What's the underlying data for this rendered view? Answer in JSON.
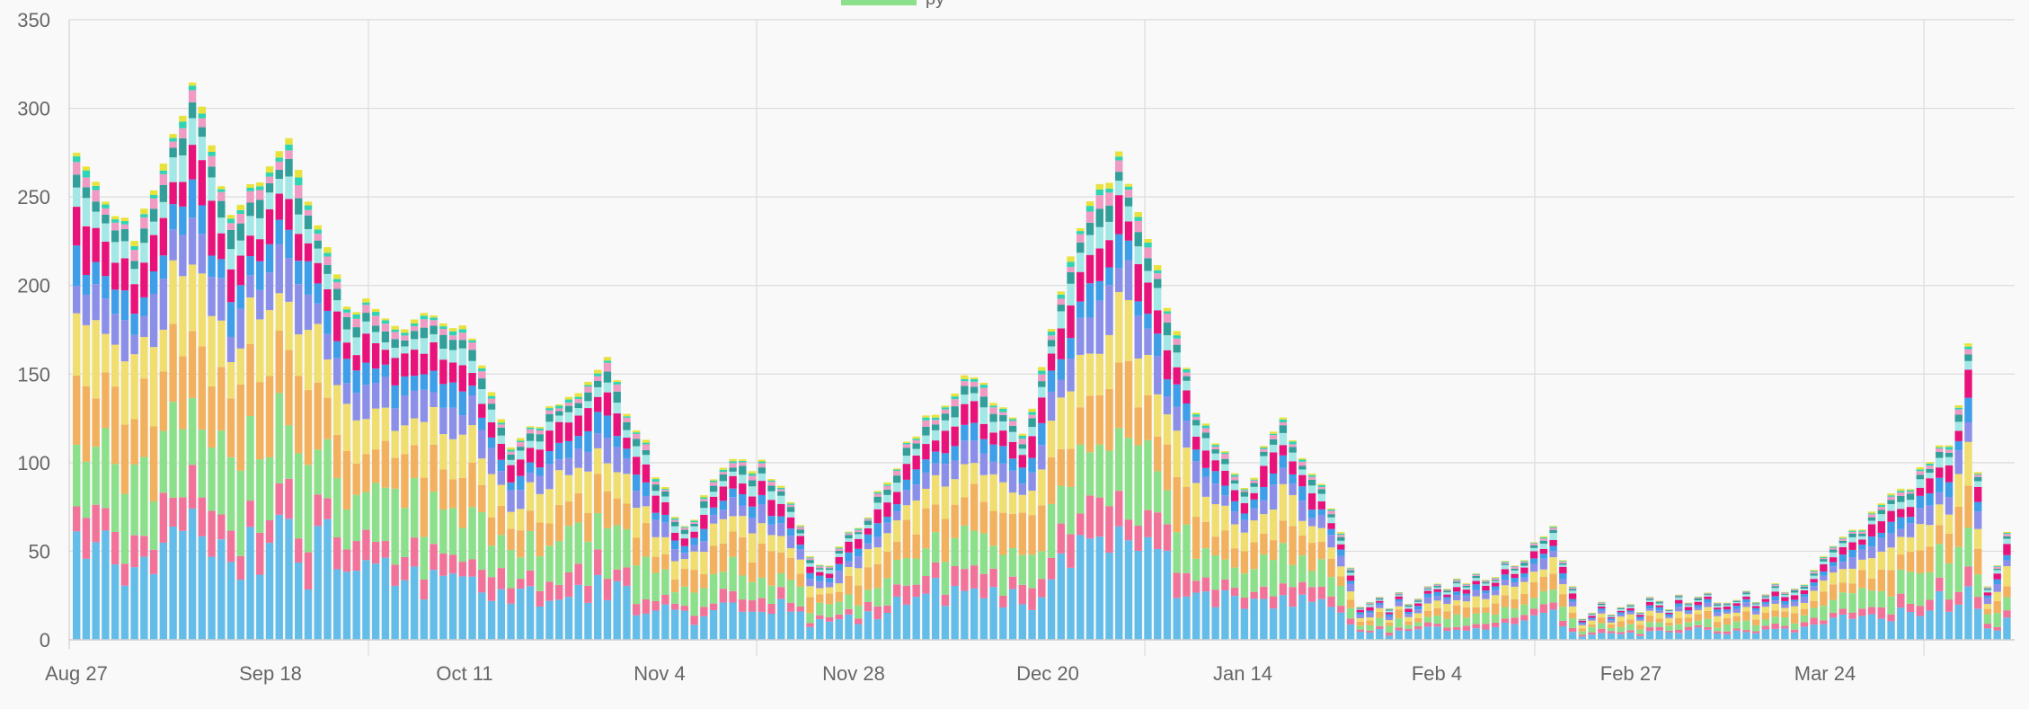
{
  "chart_data": {
    "type": "bar",
    "stacked": true,
    "title": "",
    "xlabel": "",
    "ylabel": "",
    "ylim": [
      0,
      350
    ],
    "y_ticks": [
      0,
      50,
      100,
      150,
      200,
      250,
      300,
      350
    ],
    "grid": true,
    "legend_placement": "top",
    "legend_visible_fragment": {
      "swatch_color": "#8de08b",
      "label_fragment": "py"
    },
    "x_tick_labels": [
      "Aug 27",
      "Sep 18",
      "Oct 11",
      "Nov 4",
      "Nov 28",
      "Dec 20",
      "Jan 14",
      "Feb 4",
      "Feb 27",
      "Mar 24"
    ],
    "bar_count": 201,
    "approx_totals_sampled": [
      {
        "bar": 0,
        "total": 275
      },
      {
        "bar": 6,
        "total": 228
      },
      {
        "bar": 12,
        "total": 315
      },
      {
        "bar": 16,
        "total": 240
      },
      {
        "bar": 22,
        "total": 280
      },
      {
        "bar": 28,
        "total": 192
      },
      {
        "bar": 34,
        "total": 180
      },
      {
        "bar": 40,
        "total": 180
      },
      {
        "bar": 45,
        "total": 110
      },
      {
        "bar": 50,
        "total": 133
      },
      {
        "bar": 55,
        "total": 155
      },
      {
        "bar": 59,
        "total": 108
      },
      {
        "bar": 63,
        "total": 60
      },
      {
        "bar": 68,
        "total": 103
      },
      {
        "bar": 72,
        "total": 95
      },
      {
        "bar": 77,
        "total": 40
      },
      {
        "bar": 83,
        "total": 80
      },
      {
        "bar": 88,
        "total": 125
      },
      {
        "bar": 93,
        "total": 152
      },
      {
        "bar": 98,
        "total": 115
      },
      {
        "bar": 104,
        "total": 235
      },
      {
        "bar": 108,
        "total": 272
      },
      {
        "bar": 111,
        "total": 230
      },
      {
        "bar": 116,
        "total": 130
      },
      {
        "bar": 121,
        "total": 85
      },
      {
        "bar": 125,
        "total": 125
      },
      {
        "bar": 130,
        "total": 75
      },
      {
        "bar": 133,
        "total": 18
      },
      {
        "bar": 140,
        "total": 28
      },
      {
        "bar": 145,
        "total": 35
      },
      {
        "bar": 150,
        "total": 45
      },
      {
        "bar": 153,
        "total": 62
      },
      {
        "bar": 156,
        "total": 15
      },
      {
        "bar": 162,
        "total": 20
      },
      {
        "bar": 170,
        "total": 22
      },
      {
        "bar": 178,
        "total": 30
      },
      {
        "bar": 184,
        "total": 60
      },
      {
        "bar": 190,
        "total": 90
      },
      {
        "bar": 194,
        "total": 110
      },
      {
        "bar": 196,
        "total": 163
      },
      {
        "bar": 198,
        "total": 30
      },
      {
        "bar": 200,
        "total": 60
      }
    ],
    "series_colors": [
      "#64bde8",
      "#f1739a",
      "#8de08b",
      "#f2b15e",
      "#f0de71",
      "#8c8fe8",
      "#3e9ee8",
      "#e8137a",
      "#a3e8e6",
      "#329f9a",
      "#f09bc4",
      "#2fd4b4",
      "#e8e23c"
    ]
  }
}
